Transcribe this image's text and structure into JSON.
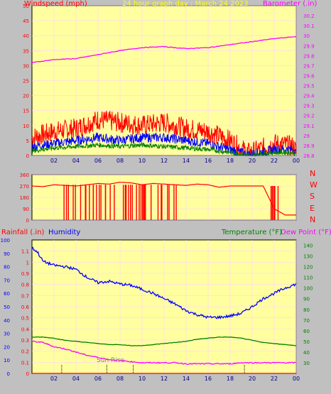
{
  "header": {
    "left_label": "Windspeed (mph)",
    "title": "24 hour graph day : March 24 2023",
    "right_label": "Barometer (.in)"
  },
  "compass_labels": [
    "N",
    "W",
    "S",
    "E",
    "N"
  ],
  "middle_legend": {
    "rainfall": "Rainfall (.in)",
    "humidity": "Humidity",
    "temperature": "Temperature (°F)",
    "dewpoint": "Dew Point (°F)"
  },
  "annotation": "Sun Rise",
  "colors": {
    "barometer": "#ff00ff",
    "gust": "#ff0000",
    "wind": "#0000ff",
    "avgwind": "#008000",
    "direction": "#ff0000",
    "humidity": "#0000ff",
    "temperature": "#008000",
    "dewpoint": "#ff00ff",
    "plot_bg": "#ffffa0",
    "left_axis": "#ff0000",
    "right_axis": "#ff00ff"
  },
  "chart_data": [
    {
      "type": "line",
      "name": "wind-barometer",
      "x_ticks": [
        "02",
        "04",
        "06",
        "08",
        "10",
        "12",
        "14",
        "16",
        "18",
        "20",
        "22",
        "00"
      ],
      "left_axis": {
        "ylim": [
          0,
          50
        ],
        "ticks": [
          0,
          5,
          10,
          15,
          20,
          25,
          30,
          35,
          40,
          45,
          50
        ]
      },
      "right_axis": {
        "ylim": [
          28.8,
          30.3
        ],
        "ticks": [
          "28.8",
          "28.9",
          "29",
          "29.1",
          "29.2",
          "29.3",
          "29.4",
          "29.5",
          "29.6",
          "29.7",
          "29.8",
          "29.9",
          "30",
          "30.1",
          "30.2"
        ]
      },
      "x_range": [
        0,
        24
      ],
      "series": [
        {
          "name": "Barometer",
          "axis": "right",
          "x": [
            0,
            2,
            4,
            6,
            8,
            10,
            12,
            14,
            16,
            18,
            20,
            22,
            24
          ],
          "y": [
            29.73,
            29.76,
            29.77,
            29.81,
            29.85,
            29.88,
            29.89,
            29.87,
            29.88,
            29.91,
            29.94,
            29.97,
            29.99
          ]
        },
        {
          "name": "Gust",
          "axis": "left",
          "x": [
            0,
            2,
            4,
            6,
            8,
            10,
            12,
            14,
            16,
            18,
            19.5,
            20,
            22,
            23.8,
            24
          ],
          "y": [
            6,
            8,
            9,
            12,
            11,
            10,
            11,
            9,
            8,
            5,
            1,
            1,
            4,
            3,
            1
          ]
        },
        {
          "name": "Wind",
          "axis": "left",
          "x": [
            0,
            2,
            4,
            6,
            8,
            10,
            12,
            14,
            16,
            18,
            19.5,
            20,
            22,
            23.8,
            24
          ],
          "y": [
            3,
            4,
            5,
            6,
            5,
            6,
            6,
            5,
            4,
            2,
            0.5,
            0.5,
            2,
            2,
            0.5
          ]
        },
        {
          "name": "Avg",
          "axis": "left",
          "x": [
            0,
            2,
            4,
            6,
            8,
            10,
            12,
            14,
            16,
            18,
            19.5,
            20,
            22,
            23.8,
            24
          ],
          "y": [
            1.5,
            2.5,
            3,
            3.5,
            3,
            3.5,
            3,
            2.5,
            2,
            1,
            0.2,
            0.2,
            1,
            1,
            0.2
          ]
        }
      ]
    },
    {
      "type": "line",
      "name": "wind-direction",
      "y_ticks": [
        0,
        90,
        180,
        270,
        360
      ],
      "ylim": [
        0,
        360
      ],
      "x_range": [
        0,
        24
      ],
      "series": [
        {
          "name": "Direction",
          "x": [
            0,
            1,
            2,
            3,
            4,
            5,
            6,
            7,
            8,
            9,
            10,
            11,
            12,
            13,
            14,
            15,
            16,
            17,
            18,
            19,
            20,
            21,
            22,
            23,
            24
          ],
          "y": [
            270,
            265,
            280,
            275,
            270,
            280,
            290,
            285,
            300,
            295,
            280,
            290,
            285,
            280,
            275,
            285,
            280,
            260,
            270,
            270,
            270,
            270,
            90,
            40,
            40
          ]
        }
      ]
    },
    {
      "type": "line",
      "name": "rain-humidity-temp",
      "x_ticks": [
        "02",
        "04",
        "06",
        "08",
        "10",
        "12",
        "14",
        "16",
        "18",
        "20",
        "22",
        "00"
      ],
      "far_left_axis": {
        "ylim": [
          0,
          100
        ],
        "ticks": [
          0,
          10,
          20,
          30,
          40,
          50,
          60,
          70,
          80,
          90,
          100
        ]
      },
      "left_axis": {
        "ylim": [
          0,
          1.2
        ],
        "ticks": [
          "0",
          "0.1",
          "0.2",
          "0.3",
          "0.4",
          "0.5",
          "0.6",
          "0.7",
          "0.8",
          "0.9",
          "1",
          "1.1"
        ]
      },
      "right_axis": {
        "ylim": [
          20,
          145
        ],
        "ticks": [
          30,
          40,
          50,
          60,
          70,
          80,
          90,
          100,
          110,
          120,
          130,
          140
        ]
      },
      "x_range": [
        0,
        24
      ],
      "series": [
        {
          "name": "Humidity",
          "axis": "far_left",
          "x": [
            0,
            0.5,
            1,
            2,
            3,
            4,
            5,
            6,
            7,
            8,
            9,
            10,
            11,
            12,
            13,
            14,
            15,
            16,
            17,
            18,
            19,
            20,
            21,
            22,
            23,
            24
          ],
          "y": [
            94,
            91,
            84,
            81,
            80,
            78,
            72,
            68,
            69,
            67,
            66,
            63,
            60,
            56,
            52,
            47,
            44,
            42,
            42,
            43,
            45,
            50,
            56,
            60,
            64,
            67
          ]
        },
        {
          "name": "Temperature",
          "axis": "right",
          "x": [
            0,
            1,
            2,
            3,
            4,
            5,
            6,
            7,
            8,
            9,
            10,
            11,
            12,
            13,
            14,
            15,
            16,
            17,
            18,
            19,
            20,
            21,
            22,
            23,
            24
          ],
          "y": [
            54,
            54,
            53,
            51,
            50,
            49,
            48,
            47,
            47,
            46,
            46,
            47,
            48,
            49,
            50,
            52,
            53,
            54,
            54,
            53,
            51,
            49,
            48,
            47,
            46
          ]
        },
        {
          "name": "Dew Point",
          "axis": "right",
          "x": [
            0,
            1,
            2,
            3,
            4,
            5,
            6,
            7,
            8,
            9,
            10,
            11,
            12,
            13,
            14,
            15,
            16,
            17,
            18,
            19,
            20,
            21,
            22,
            23,
            24
          ],
          "y": [
            50,
            49,
            45,
            43,
            40,
            37,
            35,
            33,
            32,
            31,
            30,
            30,
            30,
            30,
            29,
            29,
            29,
            29,
            29,
            30,
            30,
            30,
            30,
            30,
            30
          ]
        },
        {
          "name": "Rainfall",
          "axis": "left",
          "x": [
            0,
            24
          ],
          "y": [
            0,
            0
          ]
        }
      ]
    }
  ]
}
